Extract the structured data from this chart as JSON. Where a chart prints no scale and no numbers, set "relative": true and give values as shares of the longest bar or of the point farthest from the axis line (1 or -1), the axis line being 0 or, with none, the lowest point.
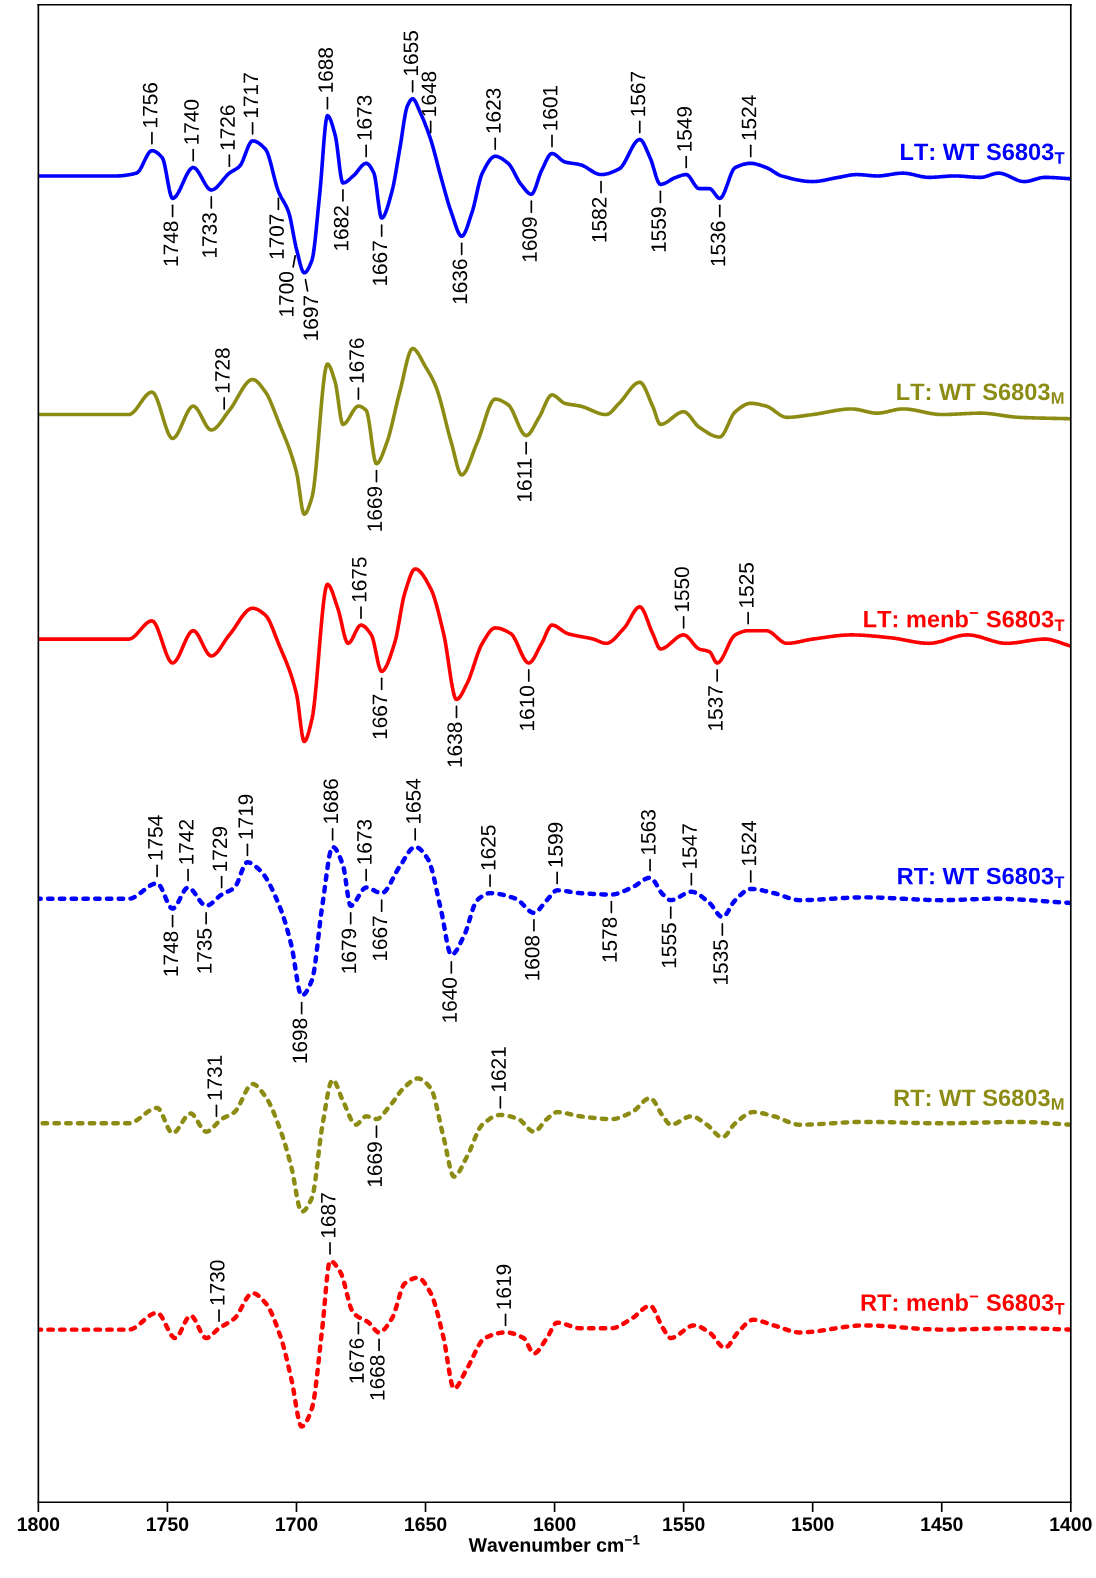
{
  "chart_data": {
    "type": "line",
    "xlabel": "Wavenumber cm$^{−1}$",
    "xlim": [
      1800,
      1400
    ],
    "xticks": [
      1800,
      1750,
      1700,
      1650,
      1600,
      1550,
      1500,
      1450,
      1400
    ],
    "relative": true,
    "grid": false,
    "legend": false,
    "marker": "none",
    "series": [
      {
        "name": "LT: WT S6803$_{T}$",
        "color": "#0000ff",
        "line_style": "solid",
        "x": [
          1800,
          1770,
          1762,
          1756,
          1752,
          1748,
          1740,
          1733,
          1726,
          1722,
          1717,
          1712,
          1707,
          1703,
          1700,
          1697,
          1694,
          1691,
          1688,
          1685,
          1682,
          1678,
          1673,
          1670,
          1667,
          1663,
          1660,
          1657,
          1655,
          1652,
          1648,
          1644,
          1640,
          1636,
          1632,
          1628,
          1623,
          1618,
          1613,
          1609,
          1605,
          1601,
          1596,
          1590,
          1582,
          1575,
          1567,
          1563,
          1559,
          1553,
          1549,
          1544,
          1540,
          1536,
          1530,
          1524,
          1518,
          1512,
          1500,
          1490,
          1483,
          1475,
          1465,
          1455,
          1445,
          1435,
          1428,
          1418,
          1410,
          1400
        ],
        "values": [
          0.945,
          0.945,
          0.947,
          0.963,
          0.958,
          0.929,
          0.951,
          0.935,
          0.947,
          0.952,
          0.97,
          0.964,
          0.934,
          0.919,
          0.893,
          0.876,
          0.885,
          0.932,
          0.988,
          0.974,
          0.94,
          0.945,
          0.954,
          0.947,
          0.915,
          0.934,
          0.964,
          0.995,
          1.0,
          0.99,
          0.971,
          0.944,
          0.919,
          0.902,
          0.919,
          0.947,
          0.959,
          0.954,
          0.939,
          0.932,
          0.949,
          0.961,
          0.955,
          0.953,
          0.946,
          0.95,
          0.971,
          0.958,
          0.939,
          0.944,
          0.946,
          0.936,
          0.936,
          0.929,
          0.951,
          0.954,
          0.951,
          0.945,
          0.941,
          0.944,
          0.946,
          0.945,
          0.947,
          0.944,
          0.945,
          0.944,
          0.947,
          0.941,
          0.944,
          0.943
        ]
      },
      {
        "name": "LT: WT S6803$_{M}$",
        "color": "#8c8c14",
        "line_style": "solid",
        "x": [
          1800,
          1765,
          1756,
          1748,
          1740,
          1733,
          1726,
          1717,
          1712,
          1707,
          1700,
          1697,
          1694,
          1688,
          1685,
          1682,
          1676,
          1673,
          1669,
          1665,
          1660,
          1655,
          1650,
          1646,
          1640,
          1636,
          1630,
          1623,
          1618,
          1611,
          1606,
          1601,
          1596,
          1590,
          1580,
          1575,
          1567,
          1562,
          1559,
          1550,
          1544,
          1536,
          1530,
          1524,
          1518,
          1510,
          1500,
          1485,
          1475,
          1465,
          1450,
          1435,
          1420,
          1400
        ],
        "values": [
          0.775,
          0.775,
          0.791,
          0.758,
          0.781,
          0.764,
          0.778,
          0.8,
          0.791,
          0.77,
          0.734,
          0.704,
          0.716,
          0.811,
          0.798,
          0.768,
          0.781,
          0.778,
          0.74,
          0.755,
          0.791,
          0.822,
          0.809,
          0.795,
          0.755,
          0.732,
          0.755,
          0.786,
          0.782,
          0.76,
          0.773,
          0.789,
          0.783,
          0.781,
          0.775,
          0.783,
          0.798,
          0.781,
          0.768,
          0.777,
          0.766,
          0.759,
          0.777,
          0.783,
          0.781,
          0.773,
          0.775,
          0.779,
          0.776,
          0.779,
          0.775,
          0.776,
          0.773,
          0.772
        ]
      },
      {
        "name": "LT: menb$^{−}$ S6803$_{T}$",
        "color": "#ff0000",
        "line_style": "solid",
        "x": [
          1800,
          1765,
          1756,
          1748,
          1740,
          1733,
          1726,
          1717,
          1712,
          1707,
          1700,
          1697,
          1694,
          1688,
          1684,
          1680,
          1675,
          1671,
          1667,
          1662,
          1658,
          1654,
          1648,
          1643,
          1638,
          1634,
          1628,
          1623,
          1617,
          1610,
          1605,
          1601,
          1595,
          1585,
          1580,
          1573,
          1567,
          1562,
          1559,
          1550,
          1544,
          1540,
          1537,
          1530,
          1525,
          1518,
          1510,
          1500,
          1485,
          1470,
          1455,
          1440,
          1425,
          1410,
          1400
        ],
        "values": [
          0.615,
          0.615,
          0.628,
          0.598,
          0.621,
          0.603,
          0.618,
          0.637,
          0.632,
          0.612,
          0.576,
          0.542,
          0.558,
          0.654,
          0.637,
          0.612,
          0.625,
          0.618,
          0.592,
          0.612,
          0.648,
          0.665,
          0.651,
          0.619,
          0.572,
          0.583,
          0.612,
          0.623,
          0.619,
          0.598,
          0.612,
          0.625,
          0.619,
          0.615,
          0.612,
          0.623,
          0.638,
          0.619,
          0.608,
          0.618,
          0.608,
          0.606,
          0.598,
          0.618,
          0.621,
          0.621,
          0.612,
          0.615,
          0.618,
          0.616,
          0.612,
          0.618,
          0.612,
          0.615,
          0.61
        ]
      },
      {
        "name": "RT: WT S6803$_{T}$",
        "color": "#0000ff",
        "line_style": "dotted",
        "x": [
          1800,
          1765,
          1754,
          1748,
          1742,
          1735,
          1729,
          1724,
          1719,
          1714,
          1706,
          1702,
          1698,
          1694,
          1690,
          1686,
          1682,
          1679,
          1673,
          1667,
          1660,
          1654,
          1649,
          1644,
          1640,
          1635,
          1630,
          1625,
          1615,
          1608,
          1603,
          1599,
          1590,
          1578,
          1570,
          1563,
          1558,
          1555,
          1547,
          1540,
          1535,
          1530,
          1524,
          1515,
          1505,
          1480,
          1450,
          1430,
          1400
        ],
        "values": [
          0.43,
          0.43,
          0.441,
          0.423,
          0.438,
          0.425,
          0.433,
          0.438,
          0.456,
          0.45,
          0.422,
          0.397,
          0.361,
          0.372,
          0.425,
          0.467,
          0.454,
          0.425,
          0.438,
          0.434,
          0.453,
          0.467,
          0.458,
          0.422,
          0.39,
          0.404,
          0.429,
          0.434,
          0.43,
          0.42,
          0.429,
          0.436,
          0.434,
          0.433,
          0.438,
          0.445,
          0.433,
          0.429,
          0.435,
          0.427,
          0.417,
          0.429,
          0.437,
          0.434,
          0.429,
          0.431,
          0.429,
          0.43,
          0.427
        ]
      },
      {
        "name": "RT: WT S6803$_{M}$",
        "color": "#8c8c14",
        "line_style": "dotted",
        "x": [
          1800,
          1765,
          1754,
          1748,
          1741,
          1735,
          1729,
          1724,
          1717,
          1712,
          1706,
          1702,
          1698,
          1694,
          1690,
          1686,
          1682,
          1677,
          1673,
          1669,
          1664,
          1658,
          1653,
          1648,
          1643,
          1639,
          1634,
          1628,
          1621,
          1614,
          1608,
          1603,
          1599,
          1590,
          1578,
          1570,
          1563,
          1558,
          1555,
          1547,
          1541,
          1535,
          1530,
          1523,
          1515,
          1505,
          1480,
          1450,
          1420,
          1400
        ],
        "values": [
          0.27,
          0.27,
          0.281,
          0.263,
          0.277,
          0.264,
          0.273,
          0.278,
          0.298,
          0.289,
          0.264,
          0.239,
          0.207,
          0.217,
          0.268,
          0.301,
          0.286,
          0.269,
          0.275,
          0.273,
          0.282,
          0.296,
          0.302,
          0.295,
          0.26,
          0.232,
          0.246,
          0.269,
          0.276,
          0.273,
          0.264,
          0.273,
          0.278,
          0.275,
          0.273,
          0.278,
          0.288,
          0.275,
          0.269,
          0.275,
          0.269,
          0.26,
          0.27,
          0.278,
          0.275,
          0.269,
          0.271,
          0.27,
          0.271,
          0.269
        ]
      },
      {
        "name": "RT: menb$^{−}$ S6803$_{T}$",
        "color": "#ff0000",
        "line_style": "dotted",
        "x": [
          1800,
          1765,
          1754,
          1747,
          1741,
          1735,
          1730,
          1724,
          1717,
          1712,
          1706,
          1702,
          1698,
          1694,
          1690,
          1687,
          1683,
          1678,
          1672,
          1668,
          1663,
          1658,
          1653,
          1648,
          1643,
          1639,
          1634,
          1627,
          1619,
          1612,
          1608,
          1603,
          1599,
          1590,
          1578,
          1570,
          1563,
          1558,
          1555,
          1546,
          1540,
          1534,
          1529,
          1523,
          1515,
          1505,
          1480,
          1450,
          1420,
          1400
        ],
        "values": [
          0.123,
          0.123,
          0.135,
          0.117,
          0.133,
          0.117,
          0.124,
          0.131,
          0.149,
          0.142,
          0.117,
          0.088,
          0.054,
          0.067,
          0.124,
          0.172,
          0.164,
          0.135,
          0.128,
          0.121,
          0.131,
          0.156,
          0.16,
          0.149,
          0.117,
          0.081,
          0.095,
          0.117,
          0.121,
          0.117,
          0.106,
          0.117,
          0.128,
          0.124,
          0.124,
          0.131,
          0.14,
          0.124,
          0.117,
          0.126,
          0.121,
          0.11,
          0.121,
          0.13,
          0.126,
          0.121,
          0.126,
          0.123,
          0.124,
          0.123
        ]
      }
    ],
    "annotations": [
      {
        "text": "1756",
        "x": 1756,
        "y": 0.963
      },
      {
        "text": "1740",
        "x": 1740,
        "y": 0.951
      },
      {
        "text": "1726",
        "x": 1726,
        "y": 0.947
      },
      {
        "text": "1717",
        "x": 1717,
        "y": 0.97
      },
      {
        "text": "1707",
        "x": 1707,
        "y": 0.934
      },
      {
        "text": "1688",
        "x": 1688,
        "y": 0.988
      },
      {
        "text": "1673",
        "x": 1673,
        "y": 0.954
      },
      {
        "text": "1655",
        "x": 1655,
        "y": 1.0
      },
      {
        "text": "1648",
        "x": 1648,
        "y": 0.971
      },
      {
        "text": "1623",
        "x": 1623,
        "y": 0.959
      },
      {
        "text": "1601",
        "x": 1601,
        "y": 0.961
      },
      {
        "text": "1567",
        "x": 1567,
        "y": 0.971
      },
      {
        "text": "1549",
        "x": 1549,
        "y": 0.946
      },
      {
        "text": "1524",
        "x": 1524,
        "y": 0.954
      },
      {
        "text": "1748",
        "x": 1748,
        "y": 0.929
      },
      {
        "text": "1733",
        "x": 1733,
        "y": 0.935
      },
      {
        "text": "1700",
        "x": 1700,
        "y": 0.893
      },
      {
        "text": "1697",
        "x": 1697,
        "y": 0.876
      },
      {
        "text": "1682",
        "x": 1682,
        "y": 0.94
      },
      {
        "text": "1667",
        "x": 1667,
        "y": 0.915
      },
      {
        "text": "1636",
        "x": 1636,
        "y": 0.902
      },
      {
        "text": "1609",
        "x": 1609,
        "y": 0.932
      },
      {
        "text": "1582",
        "x": 1582,
        "y": 0.946
      },
      {
        "text": "1559",
        "x": 1559,
        "y": 0.939
      },
      {
        "text": "1536",
        "x": 1536,
        "y": 0.929
      },
      {
        "text": "1728",
        "x": 1728,
        "y": 0.774
      },
      {
        "text": "1676",
        "x": 1676,
        "y": 0.781
      },
      {
        "text": "1669",
        "x": 1669,
        "y": 0.74
      },
      {
        "text": "1611",
        "x": 1611,
        "y": 0.76
      },
      {
        "text": "1675",
        "x": 1675,
        "y": 0.625
      },
      {
        "text": "1550",
        "x": 1550,
        "y": 0.618
      },
      {
        "text": "1525",
        "x": 1525,
        "y": 0.621
      },
      {
        "text": "1667",
        "x": 1667,
        "y": 0.592
      },
      {
        "text": "1638",
        "x": 1638,
        "y": 0.572
      },
      {
        "text": "1610",
        "x": 1610,
        "y": 0.598
      },
      {
        "text": "1537",
        "x": 1537,
        "y": 0.598
      },
      {
        "text": "1754",
        "x": 1754,
        "y": 0.441
      },
      {
        "text": "1742",
        "x": 1742,
        "y": 0.438
      },
      {
        "text": "1729",
        "x": 1729,
        "y": 0.433
      },
      {
        "text": "1719",
        "x": 1719,
        "y": 0.456
      },
      {
        "text": "1686",
        "x": 1686,
        "y": 0.467
      },
      {
        "text": "1673",
        "x": 1673,
        "y": 0.438
      },
      {
        "text": "1654",
        "x": 1654,
        "y": 0.467
      },
      {
        "text": "1625",
        "x": 1625,
        "y": 0.434
      },
      {
        "text": "1599",
        "x": 1599,
        "y": 0.436
      },
      {
        "text": "1563",
        "x": 1563,
        "y": 0.445
      },
      {
        "text": "1547",
        "x": 1547,
        "y": 0.435
      },
      {
        "text": "1524",
        "x": 1524,
        "y": 0.437
      },
      {
        "text": "1748",
        "x": 1748,
        "y": 0.423
      },
      {
        "text": "1735",
        "x": 1735,
        "y": 0.425
      },
      {
        "text": "1698",
        "x": 1698,
        "y": 0.361
      },
      {
        "text": "1679",
        "x": 1679,
        "y": 0.425
      },
      {
        "text": "1667",
        "x": 1667,
        "y": 0.434
      },
      {
        "text": "1640",
        "x": 1640,
        "y": 0.39
      },
      {
        "text": "1608",
        "x": 1608,
        "y": 0.42
      },
      {
        "text": "1578",
        "x": 1578,
        "y": 0.433
      },
      {
        "text": "1555",
        "x": 1555,
        "y": 0.429
      },
      {
        "text": "1535",
        "x": 1535,
        "y": 0.417
      },
      {
        "text": "1731",
        "x": 1731,
        "y": 0.27
      },
      {
        "text": "1621",
        "x": 1621,
        "y": 0.276
      },
      {
        "text": "1669",
        "x": 1669,
        "y": 0.273
      },
      {
        "text": "1687",
        "x": 1687,
        "y": 0.172
      },
      {
        "text": "1730",
        "x": 1730,
        "y": 0.124
      },
      {
        "text": "1619",
        "x": 1619,
        "y": 0.121
      },
      {
        "text": "1676",
        "x": 1676,
        "y": 0.133
      },
      {
        "text": "1668",
        "x": 1668,
        "y": 0.121
      }
    ]
  }
}
